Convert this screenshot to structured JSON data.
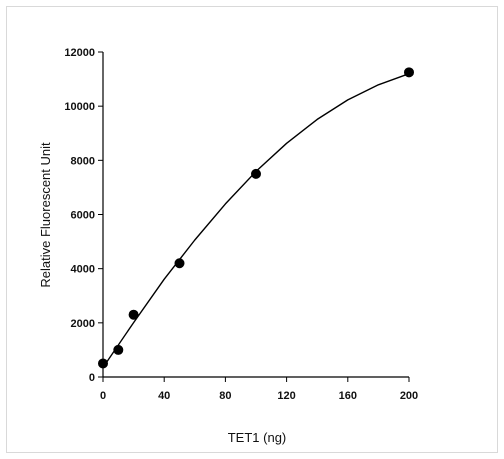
{
  "chart_data": {
    "type": "scatter",
    "title": "",
    "xlabel": "TET1 (ng)",
    "ylabel": "Relative Fluorescent Unit",
    "xlim": [
      0,
      200
    ],
    "ylim": [
      0,
      12000
    ],
    "x_ticks": [
      "0",
      "40",
      "80",
      "120",
      "160",
      "200"
    ],
    "y_ticks": [
      "0",
      "2000",
      "4000",
      "6000",
      "8000",
      "10000",
      "12000"
    ],
    "grid": false,
    "legend": "none",
    "series": [
      {
        "x": [
          0,
          10,
          20,
          50,
          100,
          200
        ],
        "y": [
          500,
          1000,
          2300,
          4200,
          7500,
          11250
        ],
        "marker": "circle",
        "color": "#000000"
      }
    ],
    "fit_curve": {
      "type": "polynomial",
      "x": [
        0,
        20,
        40,
        60,
        80,
        100,
        120,
        140,
        160,
        180,
        200
      ],
      "y": [
        350,
        2010,
        3610,
        5060,
        6390,
        7590,
        8630,
        9510,
        10230,
        10790,
        11200
      ],
      "color": "#000000"
    }
  }
}
